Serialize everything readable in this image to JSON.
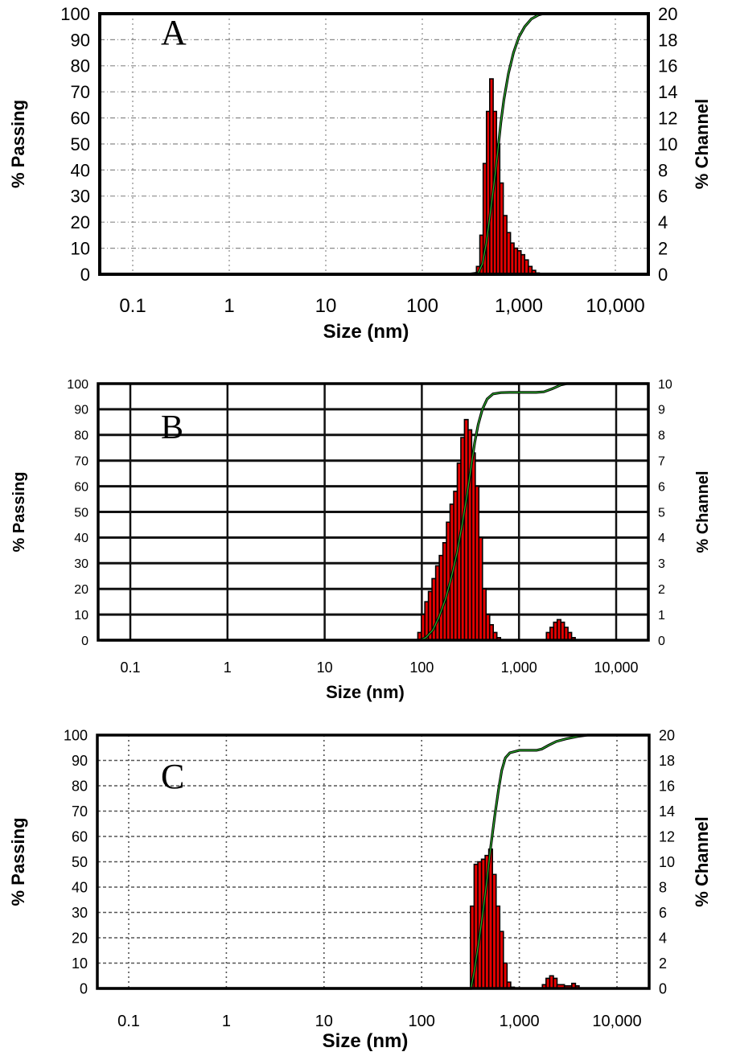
{
  "chart_data": [
    {
      "type": "bar",
      "panel_label": "A",
      "xlabel": "Size (nm)",
      "ylabel_left": "% Passing",
      "ylabel_right": "% Channel",
      "x_scale": "log",
      "x_ticks": [
        0.1,
        1,
        10,
        100,
        1000,
        10000
      ],
      "x_tick_labels": [
        "0.1",
        "1",
        "10",
        "100",
        "1,000",
        "10,000"
      ],
      "y_left_ticks": [
        0,
        10,
        20,
        30,
        40,
        50,
        60,
        70,
        80,
        90,
        100
      ],
      "y_right_ticks": [
        0,
        2,
        4,
        6,
        8,
        10,
        12,
        14,
        16,
        18,
        20
      ],
      "y_left_lim": [
        0,
        100
      ],
      "y_right_lim": [
        0,
        20
      ],
      "grid": true,
      "grid_style": "dotted-light",
      "series": [
        {
          "name": "% Channel",
          "type": "histogram",
          "color": "#e60000",
          "x": [
            380,
            410,
            445,
            480,
            520,
            565,
            610,
            660,
            720,
            785,
            855,
            930,
            1010,
            1100,
            1200,
            1310,
            1430,
            1560
          ],
          "values": [
            0.6,
            3.0,
            8.5,
            12.5,
            15.0,
            12.5,
            10.0,
            7.0,
            4.5,
            3.2,
            2.4,
            2.0,
            1.8,
            1.5,
            1.1,
            0.6,
            0.3,
            0.1
          ]
        },
        {
          "name": "% Passing",
          "type": "line",
          "color": "#1a5c1a",
          "x": [
            0.05,
            300,
            380,
            420,
            460,
            500,
            550,
            600,
            650,
            700,
            780,
            880,
            1000,
            1150,
            1350,
            1600,
            1800,
            22000
          ],
          "values": [
            0,
            0,
            0.5,
            4,
            12,
            22,
            34,
            46,
            58,
            67,
            77,
            85,
            91,
            95,
            98,
            99.5,
            100,
            100
          ]
        }
      ]
    },
    {
      "type": "bar",
      "panel_label": "B",
      "xlabel": "Size (nm)",
      "ylabel_left": "% Passing",
      "ylabel_right": "% Channel",
      "x_scale": "log",
      "x_ticks": [
        0.1,
        1,
        10,
        100,
        1000,
        10000
      ],
      "x_tick_labels": [
        "0.1",
        "1",
        "10",
        "100",
        "1,000",
        "10,000"
      ],
      "y_left_ticks": [
        0,
        10,
        20,
        30,
        40,
        50,
        60,
        70,
        80,
        90,
        100
      ],
      "y_right_ticks": [
        0,
        1,
        2,
        3,
        4,
        5,
        6,
        7,
        8,
        9,
        10
      ],
      "y_left_lim": [
        0,
        100
      ],
      "y_right_lim": [
        0,
        10
      ],
      "grid": true,
      "grid_style": "solid-heavy",
      "series": [
        {
          "name": "% Channel",
          "type": "histogram",
          "color": "#e60000",
          "x": [
            95,
            103,
            112,
            122,
            133,
            145,
            158,
            172,
            187,
            204,
            222,
            242,
            263,
            287,
            312,
            340,
            370,
            403,
            439,
            478,
            521,
            567,
            618,
            2000,
            2180,
            2370,
            2580,
            2810,
            3060,
            3330,
            3630
          ],
          "values": [
            0.3,
            1.0,
            1.5,
            1.9,
            2.4,
            2.9,
            3.3,
            3.8,
            4.6,
            5.3,
            5.8,
            6.9,
            7.9,
            8.6,
            8.2,
            7.3,
            6.0,
            4.0,
            2.0,
            1.0,
            0.6,
            0.3,
            0.1,
            0.3,
            0.5,
            0.7,
            0.8,
            0.7,
            0.5,
            0.3,
            0.1
          ]
        },
        {
          "name": "% Passing",
          "type": "line",
          "color": "#1a5c1a",
          "x": [
            0.05,
            95,
            110,
            130,
            150,
            175,
            200,
            230,
            260,
            290,
            320,
            350,
            380,
            420,
            470,
            540,
            650,
            800,
            1500,
            1800,
            2200,
            2700,
            3100,
            22000
          ],
          "values": [
            0,
            0,
            1,
            4,
            9,
            16,
            24,
            34,
            45,
            56,
            67,
            77,
            84,
            90,
            94,
            96,
            96.5,
            96.6,
            96.6,
            96.8,
            98,
            99.5,
            100,
            100
          ]
        }
      ]
    },
    {
      "type": "bar",
      "panel_label": "C",
      "xlabel": "Size (nm)",
      "ylabel_left": "% Passing",
      "ylabel_right": "% Channel",
      "x_scale": "log",
      "x_ticks": [
        0.1,
        1,
        10,
        100,
        1000,
        10000
      ],
      "x_tick_labels": [
        "0.1",
        "1",
        "10",
        "100",
        "1,000",
        "10,000"
      ],
      "y_left_ticks": [
        0,
        10,
        20,
        30,
        40,
        50,
        60,
        70,
        80,
        90,
        100
      ],
      "y_right_ticks": [
        0,
        2,
        4,
        6,
        8,
        10,
        12,
        14,
        16,
        18,
        20
      ],
      "y_left_lim": [
        0,
        100
      ],
      "y_right_lim": [
        0,
        20
      ],
      "grid": true,
      "grid_style": "dotted-medium",
      "series": [
        {
          "name": "% Channel",
          "type": "histogram",
          "color": "#e60000",
          "x": [
            330,
            360,
            393,
            428,
            466,
            508,
            554,
            604,
            658,
            717,
            782,
            852,
            1800,
            1960,
            2140,
            2330,
            2540,
            3300,
            3600,
            3920
          ],
          "values": [
            6.5,
            9.8,
            10.0,
            10.2,
            10.5,
            11.0,
            9.0,
            6.5,
            4.5,
            2.0,
            0.5,
            0.1,
            0.3,
            0.8,
            1.0,
            0.8,
            0.3,
            0.2,
            0.4,
            0.2
          ]
        },
        {
          "name": "% Passing",
          "type": "line",
          "color": "#1a5c1a",
          "x": [
            0.05,
            320,
            350,
            390,
            430,
            470,
            510,
            560,
            610,
            660,
            720,
            800,
            1000,
            1500,
            1700,
            2000,
            2400,
            3000,
            4000,
            5000,
            22000
          ],
          "values": [
            0,
            0,
            8,
            20,
            32,
            44,
            56,
            68,
            78,
            86,
            91,
            93,
            94,
            94,
            94.5,
            96,
            97.5,
            98.5,
            99.5,
            100,
            100
          ]
        }
      ]
    }
  ]
}
